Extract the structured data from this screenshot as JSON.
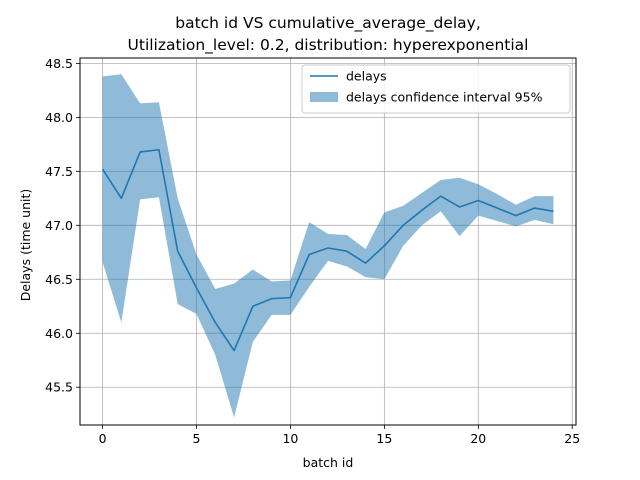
{
  "chart_data": {
    "type": "line",
    "title_lines": [
      "batch id VS cumulative_average_delay,",
      "Utilization_level: 0.2, distribution: hyperexponential"
    ],
    "xlabel": "batch id",
    "ylabel": "Delays (time unit)",
    "xlim": [
      -1.2,
      25.2
    ],
    "ylim": [
      45.15,
      48.55
    ],
    "xticks": [
      0,
      5,
      10,
      15,
      20,
      25
    ],
    "yticks": [
      45.5,
      46.0,
      46.5,
      47.0,
      47.5,
      48.0,
      48.5
    ],
    "grid": true,
    "legend_position": "top-right",
    "series": [
      {
        "name": "delays",
        "color": "#1f77b4",
        "x": [
          0,
          1,
          2,
          3,
          4,
          5,
          6,
          7,
          8,
          9,
          10,
          11,
          12,
          13,
          14,
          15,
          16,
          17,
          18,
          19,
          20,
          21,
          22,
          23,
          24
        ],
        "values": [
          47.52,
          47.25,
          47.68,
          47.7,
          46.76,
          46.42,
          46.1,
          45.84,
          46.25,
          46.32,
          46.33,
          46.73,
          46.79,
          46.76,
          46.65,
          46.81,
          47.0,
          47.14,
          47.27,
          47.17,
          47.23,
          47.16,
          47.09,
          47.16,
          47.13
        ]
      }
    ],
    "bands": [
      {
        "name": "delays confidence interval 95%",
        "color": "#1f77b4",
        "opacity": 0.5,
        "x": [
          0,
          1,
          2,
          3,
          4,
          5,
          6,
          7,
          8,
          9,
          10,
          11,
          12,
          13,
          14,
          15,
          16,
          17,
          18,
          19,
          20,
          21,
          22,
          23,
          24
        ],
        "upper": [
          48.38,
          48.4,
          48.13,
          48.14,
          47.25,
          46.73,
          46.41,
          46.46,
          46.59,
          46.48,
          46.49,
          47.03,
          46.92,
          46.91,
          46.78,
          47.12,
          47.18,
          47.3,
          47.42,
          47.44,
          47.38,
          47.29,
          47.19,
          47.27,
          47.27
        ],
        "lower": [
          46.66,
          46.1,
          47.24,
          47.26,
          46.27,
          46.18,
          45.8,
          45.22,
          45.92,
          46.17,
          46.17,
          46.43,
          46.67,
          46.62,
          46.52,
          46.5,
          46.81,
          47.0,
          47.13,
          46.9,
          47.09,
          47.04,
          46.99,
          47.05,
          47.01
        ]
      }
    ]
  }
}
